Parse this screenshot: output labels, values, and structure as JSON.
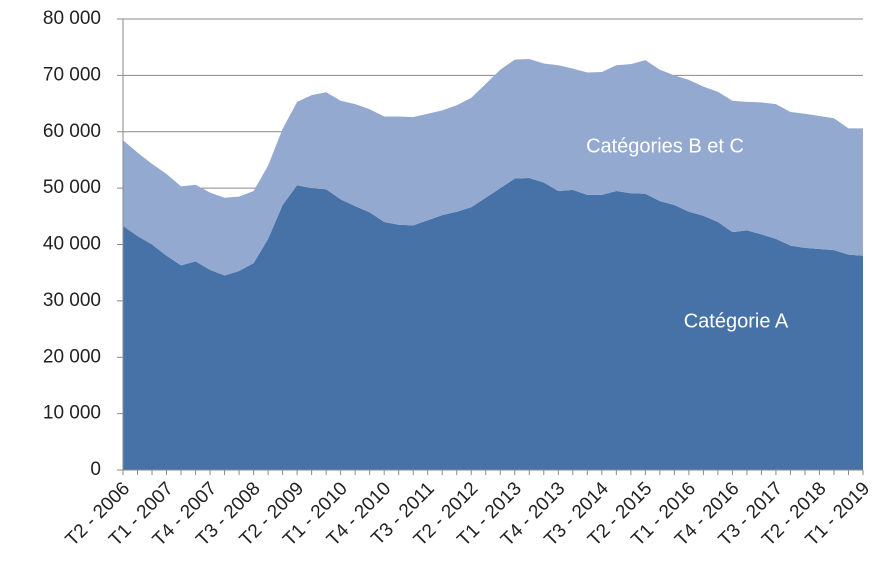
{
  "chart_data": {
    "type": "stacked_area",
    "categories": [
      "T2 - 2006",
      null,
      null,
      "T1 - 2007",
      null,
      null,
      "T4 - 2007",
      null,
      null,
      "T3 - 2008",
      null,
      null,
      "T2 - 2009",
      null,
      null,
      "T1 - 2010",
      null,
      null,
      "T4 - 2010",
      null,
      null,
      "T3 - 2011",
      null,
      null,
      "T2 - 2012",
      null,
      null,
      "T1 - 2013",
      null,
      null,
      "T4 - 2013",
      null,
      null,
      "T3 - 2014",
      null,
      null,
      "T2 - 2015",
      null,
      null,
      "T1 - 2016",
      null,
      null,
      "T4 - 2016",
      null,
      null,
      "T3 - 2017",
      null,
      null,
      "T2 - 2018",
      null,
      null,
      "T1 - 2019"
    ],
    "series": [
      {
        "name": "Catégorie A",
        "color": "#4672a8",
        "values": [
          43300,
          41500,
          40000,
          38000,
          36300,
          37000,
          35500,
          34500,
          35300,
          36700,
          41000,
          47000,
          50500,
          50000,
          49800,
          48000,
          46800,
          45700,
          44000,
          43500,
          43400,
          44300,
          45200,
          45800,
          46600,
          48300,
          50000,
          51700,
          51800,
          51000,
          49500,
          49700,
          48800,
          48800,
          49500,
          49100,
          49000,
          47700,
          47000,
          45800,
          45100,
          44000,
          42200,
          42500,
          41800,
          41000,
          39800,
          39400,
          39200,
          39000,
          38200,
          38000
        ]
      },
      {
        "name": "Catégories B et C",
        "color": "#94a9d0",
        "values": [
          15200,
          14800,
          14300,
          14500,
          14000,
          13600,
          13700,
          13800,
          13200,
          12800,
          13000,
          13500,
          14800,
          16500,
          17200,
          17500,
          18100,
          18300,
          18700,
          19200,
          19200,
          18900,
          18600,
          18900,
          19400,
          20200,
          21000,
          21100,
          21100,
          21100,
          22300,
          21500,
          21700,
          21800,
          22300,
          22900,
          23700,
          23300,
          23000,
          23400,
          22900,
          23100,
          23300,
          22800,
          23400,
          23900,
          23700,
          23800,
          23600,
          23400,
          22400,
          22600
        ]
      }
    ],
    "ylim": [
      0,
      80000
    ],
    "yticks": [
      0,
      {
        "value": 10000,
        "label": "10 000"
      },
      {
        "value": 20000,
        "label": "20 000"
      },
      {
        "value": 30000,
        "label": "30 000"
      },
      {
        "value": 40000,
        "label": "40 000"
      },
      {
        "value": 50000,
        "label": "50 000"
      },
      {
        "value": 60000,
        "label": "60 000"
      },
      {
        "value": 70000,
        "label": "70 000"
      },
      {
        "value": 80000,
        "label": "80 000"
      }
    ],
    "grid": true
  }
}
